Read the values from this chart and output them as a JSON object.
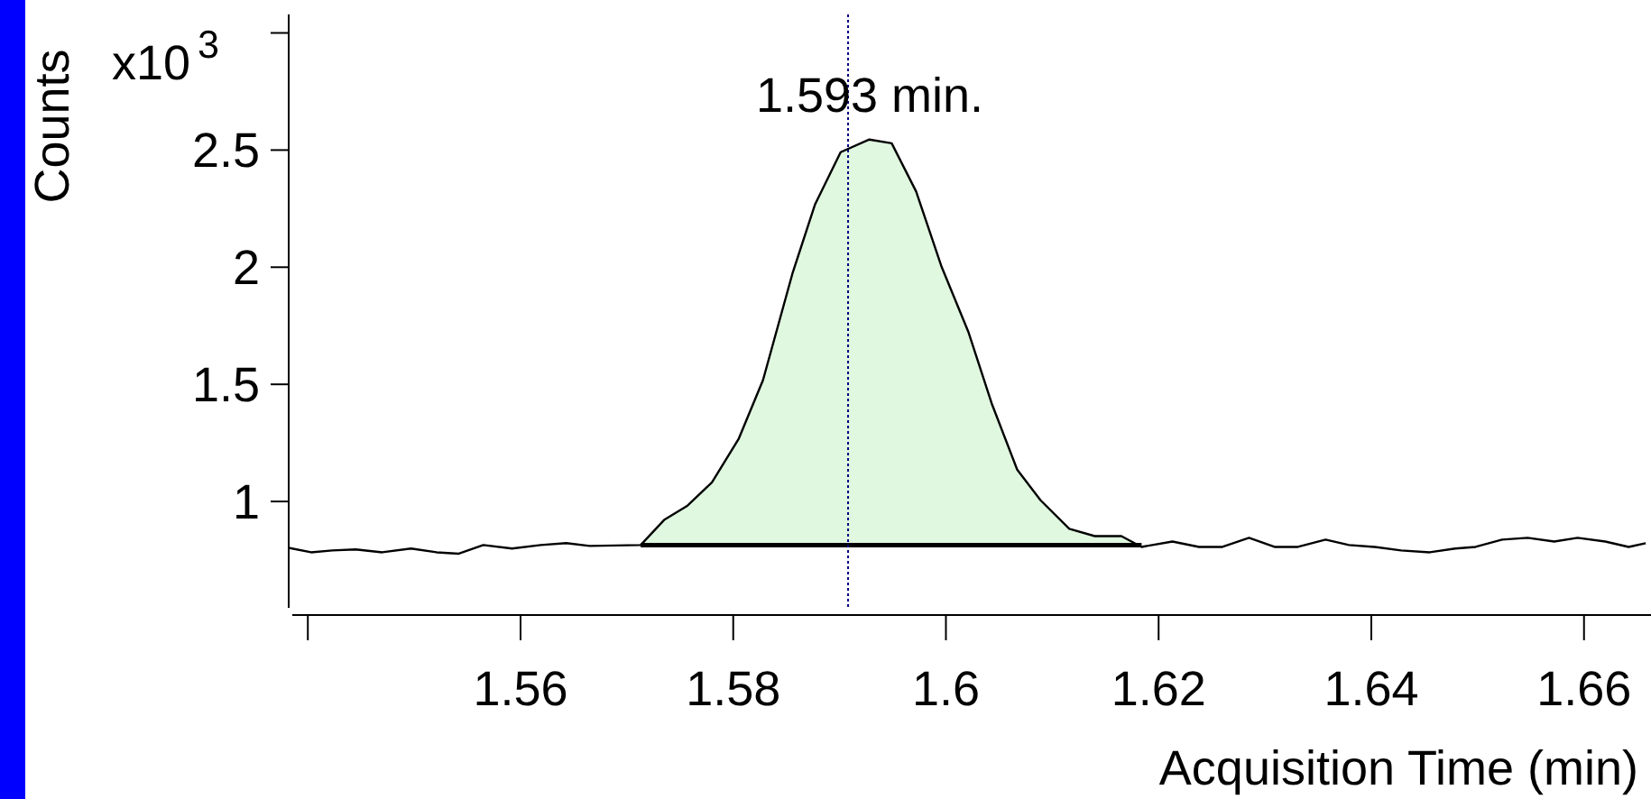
{
  "chart_data": {
    "type": "line",
    "xlabel": "Acquisition Time (min)",
    "ylabel": "Counts",
    "annotations": [
      "x10$^{3}$",
      "1.593 min."
    ],
    "xlim": [
      1.5382,
      1.6663
    ],
    "ylim": [
      0.546,
      3.079
    ],
    "xticks": [
      {
        "value": 1.54,
        "label": null
      },
      1.56,
      1.58,
      {
        "value": 1.6,
        "label": "1.6"
      },
      1.62,
      1.64,
      1.66
    ],
    "yticks": [
      1,
      1.5,
      2,
      2.5,
      {
        "value": 3,
        "label": null
      }
    ],
    "grid": false,
    "marker": "none",
    "line_style": "solid",
    "ref_lines": [
      {
        "axis": "x",
        "value": 1.5908,
        "color": "#000080",
        "line_style": "dotted"
      }
    ],
    "series": [
      {
        "color": "#000000",
        "x": [
          1.5382,
          1.5403,
          1.5423,
          1.5445,
          1.547,
          1.5497,
          1.5521,
          1.5542,
          1.5565,
          1.5592,
          1.5619,
          1.5643,
          1.5665,
          1.5713,
          1.5735,
          1.5757,
          1.578,
          1.5805,
          1.5828,
          1.5856,
          1.5877,
          1.5901,
          1.5928,
          1.5949,
          1.5972,
          1.5996,
          1.6021,
          1.6043,
          1.6067,
          1.6089,
          1.6116,
          1.614,
          1.6165,
          1.6184,
          1.6213,
          1.6238,
          1.626,
          1.6285,
          1.6309,
          1.6331,
          1.6357,
          1.6379,
          1.6403,
          1.6428,
          1.6455,
          1.6479,
          1.6498,
          1.6523,
          1.6547,
          1.6572,
          1.6594,
          1.662,
          1.6642,
          1.6658
        ],
        "values": [
          0.802,
          0.783,
          0.791,
          0.795,
          0.783,
          0.799,
          0.783,
          0.777,
          0.814,
          0.799,
          0.814,
          0.822,
          0.81,
          0.814,
          0.921,
          0.982,
          1.082,
          1.266,
          1.518,
          1.978,
          2.269,
          2.491,
          2.545,
          2.529,
          2.323,
          2.001,
          1.725,
          1.419,
          1.136,
          1.005,
          0.883,
          0.852,
          0.852,
          0.806,
          0.829,
          0.806,
          0.806,
          0.845,
          0.806,
          0.806,
          0.837,
          0.814,
          0.806,
          0.791,
          0.783,
          0.799,
          0.806,
          0.837,
          0.845,
          0.829,
          0.845,
          0.829,
          0.806,
          0.822
        ],
        "lower": [
          null,
          null,
          null,
          null,
          null,
          null,
          null,
          null,
          null,
          null,
          null,
          null,
          null,
          0.814,
          0.814,
          0.814,
          0.814,
          0.814,
          0.814,
          0.814,
          0.814,
          0.814,
          0.814,
          0.814,
          0.814,
          0.814,
          0.814,
          0.814,
          0.814,
          0.814,
          0.814,
          0.814,
          0.814,
          0.814,
          null,
          null,
          null,
          null,
          null,
          null,
          null,
          null,
          null,
          null,
          null,
          null,
          null,
          null,
          null,
          null,
          null,
          null,
          null,
          null
        ],
        "upper": [
          null,
          null,
          null,
          null,
          null,
          null,
          null,
          null,
          null,
          null,
          null,
          null,
          null,
          0.814,
          0.921,
          0.982,
          1.082,
          1.266,
          1.518,
          1.978,
          2.269,
          2.491,
          2.545,
          2.529,
          2.323,
          2.001,
          1.725,
          1.419,
          1.136,
          1.005,
          0.883,
          0.852,
          0.852,
          0.806,
          null,
          null,
          null,
          null,
          null,
          null,
          null,
          null,
          null,
          null,
          null,
          null,
          null,
          null,
          null,
          null,
          null,
          null,
          null,
          null
        ]
      },
      {
        "color": "#000000",
        "x": [
          1.5713,
          1.6184
        ],
        "values": [
          0.814,
          0.814
        ]
      }
    ]
  }
}
